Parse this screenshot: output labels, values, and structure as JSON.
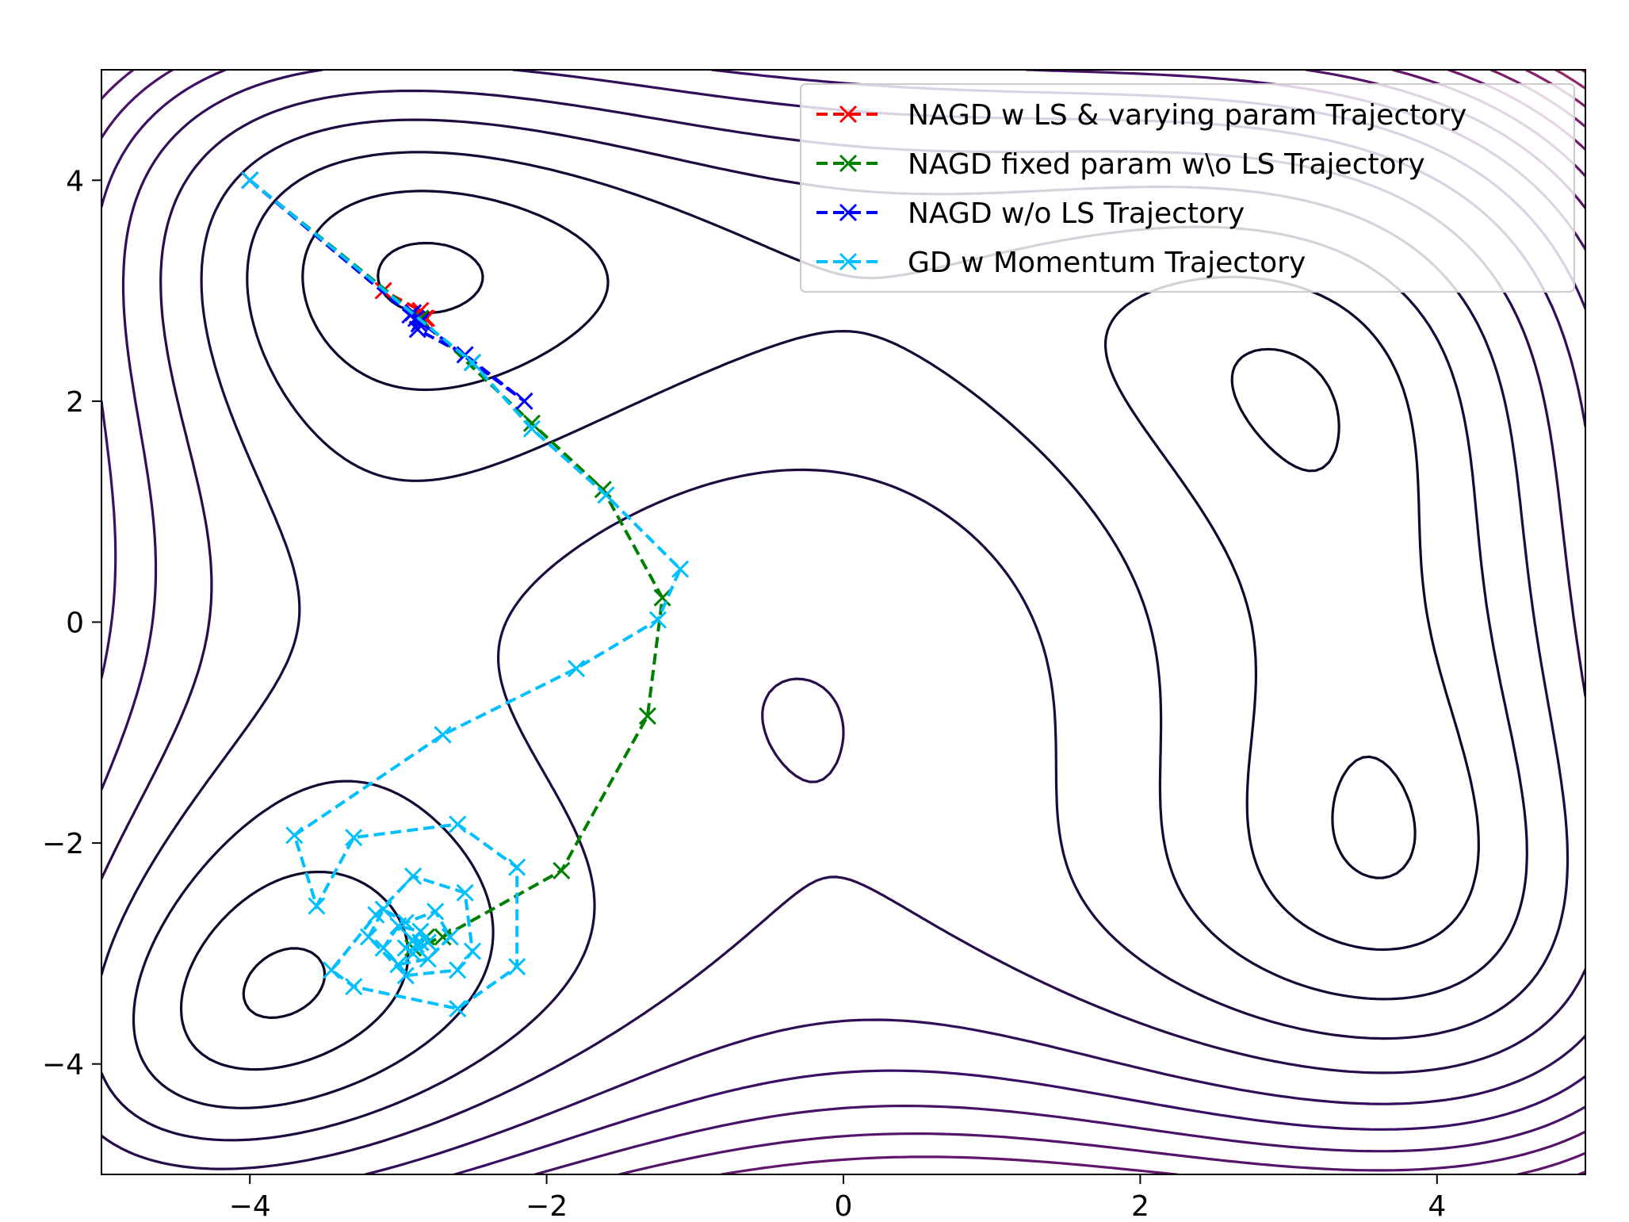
{
  "chart_data": {
    "type": "line",
    "title": "",
    "xlabel": "",
    "ylabel": "",
    "xlim": [
      -5,
      5
    ],
    "ylim": [
      -5,
      5
    ],
    "x_ticks": [
      -4,
      -2,
      0,
      2,
      4
    ],
    "y_ticks": [
      -4,
      -2,
      0,
      2,
      4
    ],
    "x_tick_labels": [
      "−4",
      "−2",
      "0",
      "2",
      "4"
    ],
    "y_tick_labels": [
      "−4",
      "−2",
      "0",
      "2",
      "4"
    ],
    "grid": false,
    "legend_position": "top-right",
    "background": "contour plot of the Himmelblau function f(x,y)=(x^2+y-11)^2+(x+y^2-7)^2",
    "contour_levels": [
      4,
      30,
      70,
      120,
      180,
      250,
      320,
      390,
      460,
      530,
      600,
      670,
      740,
      810,
      880,
      950,
      1020,
      1090,
      1160,
      1230,
      1300,
      1370,
      1440,
      1510,
      1580,
      1650,
      1720
    ],
    "series": [
      {
        "name": "NAGD w LS & varying param Trajectory",
        "color": "#ff0000",
        "linestyle": "dashed",
        "marker": "x",
        "x": [
          -4.0,
          -3.1,
          -2.85,
          -2.82,
          -2.81
        ],
        "y": [
          4.0,
          3.0,
          2.82,
          2.75,
          2.75
        ]
      },
      {
        "name": "NAGD fixed param w\\o LS Trajectory",
        "color": "#008000",
        "linestyle": "dashed",
        "marker": "x",
        "x": [
          -4.0,
          -2.85,
          -2.1,
          -1.62,
          -1.22,
          -1.32,
          -1.9,
          -2.7,
          -2.9,
          -2.85,
          -2.81
        ],
        "y": [
          4.0,
          2.75,
          1.8,
          1.2,
          0.22,
          -0.85,
          -2.25,
          -2.85,
          -2.95,
          -2.9,
          -2.85
        ]
      },
      {
        "name": "NAGD w/o LS Trajectory",
        "color": "#0000ff",
        "linestyle": "dashed",
        "marker": "x",
        "x": [
          -4.0,
          -2.92,
          -2.87,
          -2.55,
          -2.15,
          -2.5,
          -2.85,
          -2.9,
          -2.88,
          -2.86
        ],
        "y": [
          4.0,
          2.78,
          2.65,
          2.42,
          2.0,
          2.35,
          2.72,
          2.8,
          2.75,
          2.7
        ]
      },
      {
        "name": "GD w Momentum Trajectory",
        "color": "#00bfff",
        "linestyle": "dashed",
        "marker": "x",
        "x": [
          -4.0,
          -2.5,
          -2.1,
          -1.6,
          -1.1,
          -1.25,
          -1.8,
          -2.7,
          -3.7,
          -3.55,
          -3.3,
          -2.6,
          -2.2,
          -2.2,
          -2.6,
          -3.3,
          -3.45,
          -3.15,
          -2.9,
          -2.55,
          -2.5,
          -2.6,
          -2.95,
          -3.2,
          -3.1,
          -2.95,
          -2.75,
          -2.65,
          -2.8,
          -3.0,
          -3.1,
          -3.0,
          -2.85,
          -2.8,
          -2.9,
          -2.95,
          -2.9,
          -2.85,
          -2.88
        ],
        "y": [
          4.0,
          2.35,
          1.75,
          1.15,
          0.48,
          0.02,
          -0.42,
          -1.02,
          -1.93,
          -2.57,
          -1.95,
          -1.83,
          -2.22,
          -3.12,
          -3.5,
          -3.3,
          -3.15,
          -2.65,
          -2.3,
          -2.45,
          -2.98,
          -3.15,
          -3.2,
          -2.85,
          -2.6,
          -2.72,
          -2.62,
          -2.85,
          -3.05,
          -3.1,
          -2.95,
          -2.75,
          -2.8,
          -2.9,
          -3.0,
          -2.95,
          -2.88,
          -2.9,
          -2.92
        ]
      }
    ]
  }
}
